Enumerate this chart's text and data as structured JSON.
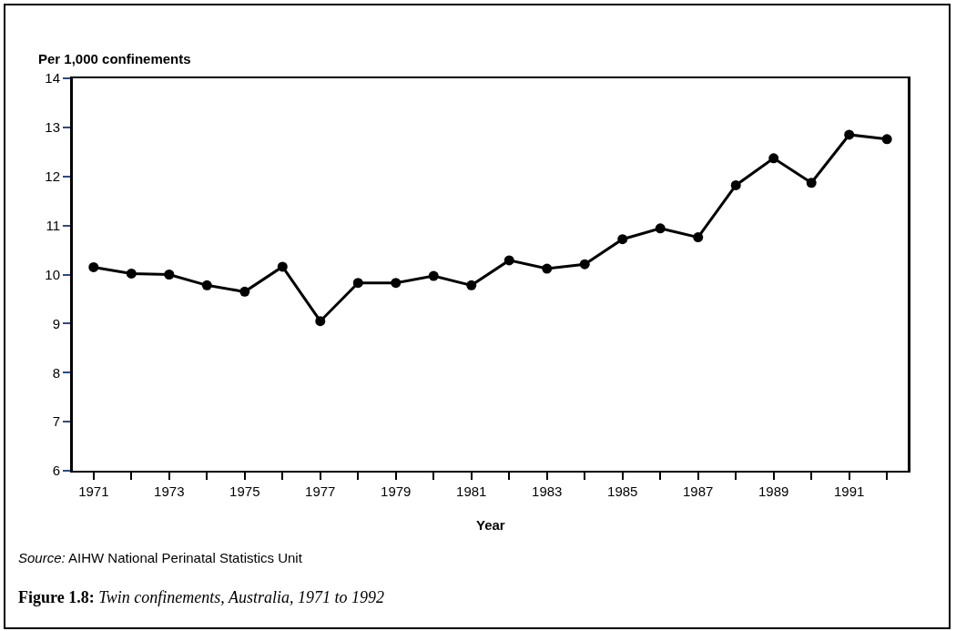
{
  "chart_data": {
    "type": "line",
    "title": "Figure 1.8: Twin confinements, Australia, 1971 to 1992",
    "xlabel": "Year",
    "ylabel": "Per 1,000 confinements",
    "annotations": [
      "Source: AIHW National Perinatal Statistics Unit"
    ],
    "x": [
      1971,
      1972,
      1973,
      1974,
      1975,
      1976,
      1977,
      1978,
      1979,
      1980,
      1981,
      1982,
      1983,
      1984,
      1985,
      1986,
      1987,
      1988,
      1989,
      1990,
      1991,
      1992
    ],
    "series": [
      {
        "color": "#000000",
        "values": [
          10.15,
          10.02,
          10.0,
          9.78,
          9.65,
          10.16,
          9.05,
          9.83,
          9.83,
          9.97,
          9.78,
          10.29,
          10.12,
          10.21,
          10.72,
          10.94,
          10.76,
          11.82,
          12.37,
          11.87,
          12.85,
          12.76
        ]
      }
    ],
    "xlim": [
      1970.45,
      1992.55
    ],
    "xticks": [
      1971,
      {
        "value": 1972,
        "label": null
      },
      1973,
      {
        "value": 1974,
        "label": null
      },
      1975,
      {
        "value": 1976,
        "label": null
      },
      1977,
      {
        "value": 1978,
        "label": null
      },
      1979,
      {
        "value": 1980,
        "label": null
      },
      1981,
      {
        "value": 1982,
        "label": null
      },
      1983,
      {
        "value": 1984,
        "label": null
      },
      1985,
      {
        "value": 1986,
        "label": null
      },
      1987,
      {
        "value": 1988,
        "label": null
      },
      1989,
      {
        "value": 1990,
        "label": null
      },
      1991,
      {
        "value": 1992,
        "label": null
      }
    ],
    "ylim": [
      6,
      14
    ],
    "yticks": [
      6,
      7,
      8,
      9,
      10,
      11,
      12,
      13,
      14
    ],
    "grid": false,
    "marker": "circle",
    "line_style": "solid"
  }
}
